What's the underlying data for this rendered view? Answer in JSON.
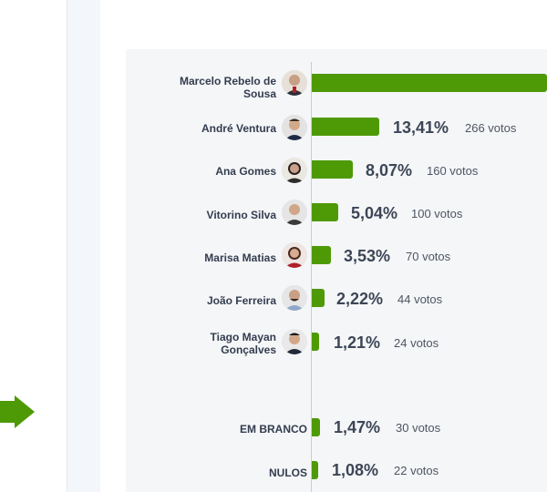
{
  "colors": {
    "bar": "#4e9a06",
    "panel": "#f5f6f8",
    "text": "#333d4f"
  },
  "candidates": [
    {
      "name_line1": "Marcelo Rebelo de",
      "name_line2": "Sousa",
      "percent": "",
      "votes": "",
      "avatar": "portrait-icon"
    },
    {
      "name_line1": "André Ventura",
      "name_line2": "",
      "percent": "13,41%",
      "votes": "266 votos",
      "avatar": "portrait-icon"
    },
    {
      "name_line1": "Ana Gomes",
      "name_line2": "",
      "percent": "8,07%",
      "votes": "160 votos",
      "avatar": "portrait-icon"
    },
    {
      "name_line1": "Vitorino Silva",
      "name_line2": "",
      "percent": "5,04%",
      "votes": "100 votos",
      "avatar": "portrait-icon"
    },
    {
      "name_line1": "Marisa Matias",
      "name_line2": "",
      "percent": "3,53%",
      "votes": "70 votos",
      "avatar": "portrait-icon"
    },
    {
      "name_line1": "João Ferreira",
      "name_line2": "",
      "percent": "2,22%",
      "votes": "44 votos",
      "avatar": "portrait-icon"
    },
    {
      "name_line1": "Tiago Mayan",
      "name_line2": "Gonçalves",
      "percent": "1,21%",
      "votes": "24 votos",
      "avatar": "portrait-icon"
    }
  ],
  "extras": [
    {
      "name": "EM BRANCO",
      "percent": "1,47%",
      "votes": "30 votos"
    },
    {
      "name": "NULOS",
      "percent": "1,08%",
      "votes": "22 votos"
    }
  ]
}
